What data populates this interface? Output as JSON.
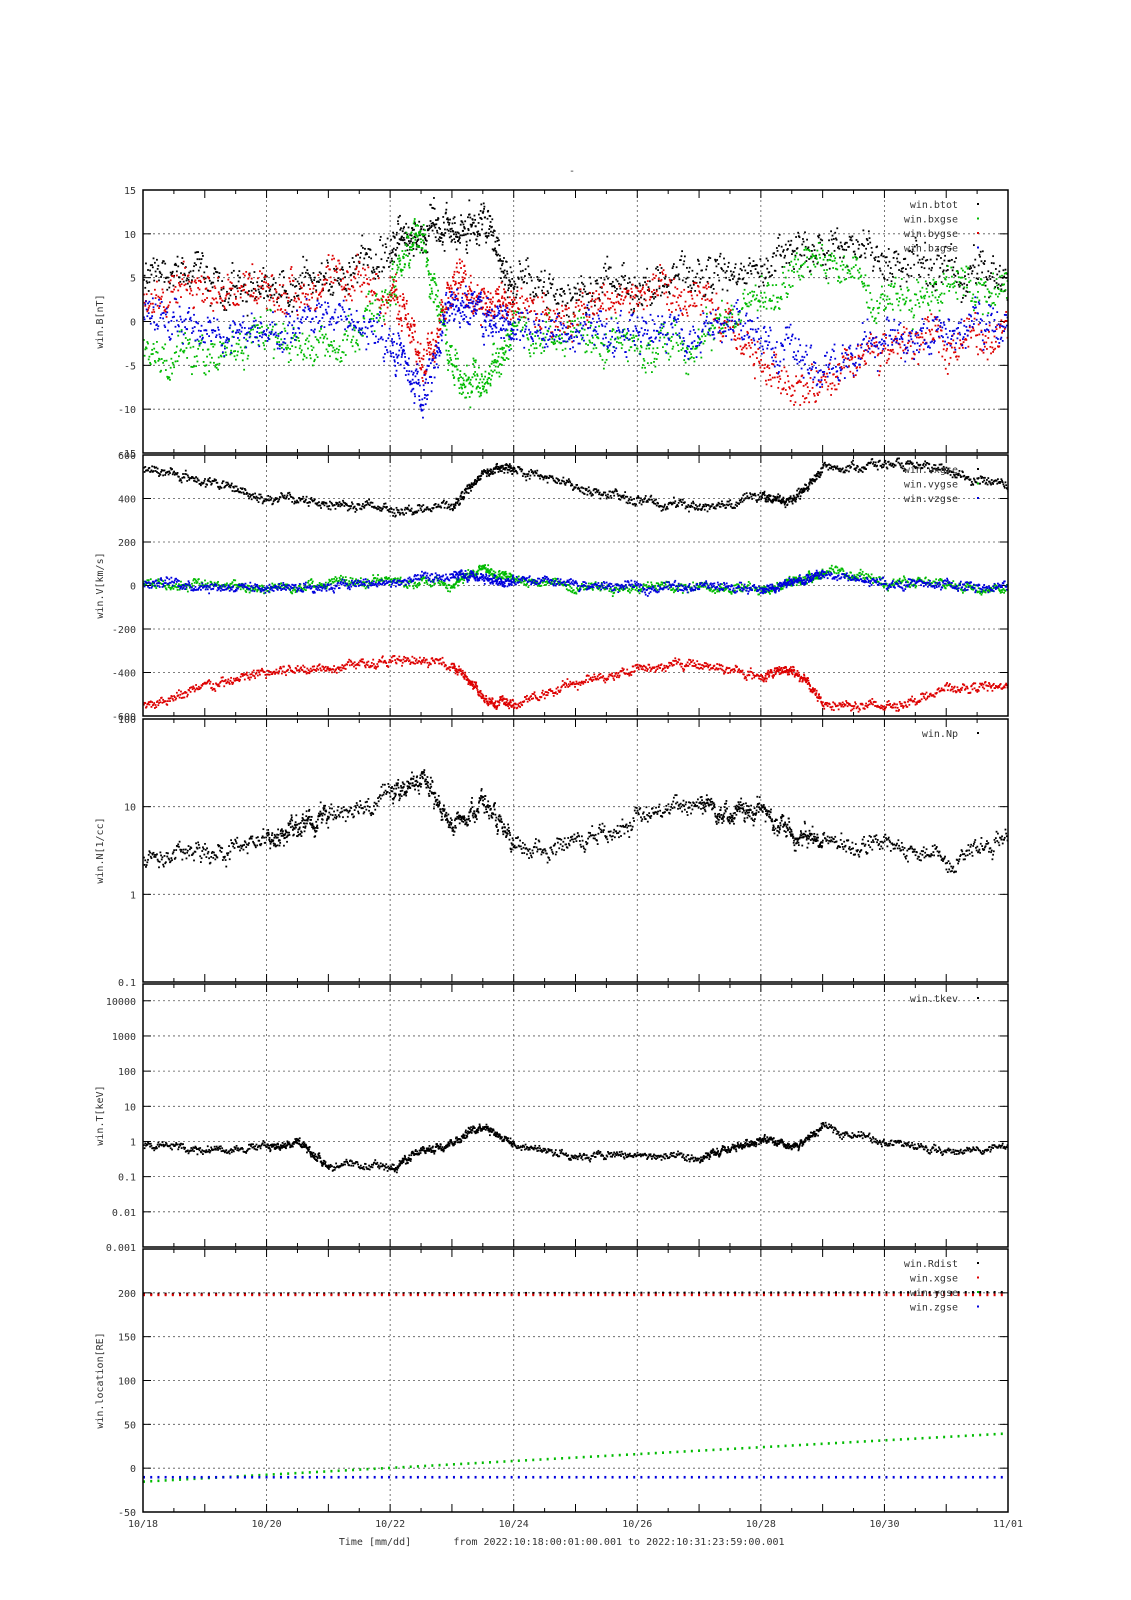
{
  "title": "-",
  "footer": {
    "xlabel": "Time [mm/dd]",
    "range_text": "from 2022:10:18:00:01:00.001  to  2022:10:31:23:59:00.001"
  },
  "x_axis": {
    "unit": "day",
    "start": "10/18",
    "end": "11/01",
    "tick_labels": [
      "10/18",
      "10/20",
      "10/22",
      "10/24",
      "10/26",
      "10/28",
      "10/30",
      "11/01"
    ],
    "grid": true
  },
  "chart_data": [
    {
      "type": "scatter",
      "ylabel": "win.B[nT]",
      "ylim": [
        -15,
        15
      ],
      "yscale": "linear",
      "yticks": [
        "15",
        "10",
        "5",
        "0",
        "-5",
        "-10",
        "-15"
      ],
      "grid": true,
      "legend_placement": "top-right",
      "series": [
        {
          "name": "win.btot",
          "color": "#000000",
          "x": [
            "10/18",
            "10/19",
            "10/20",
            "10/21",
            "10/22",
            "10/22 12h",
            "10/23",
            "10/23 12h",
            "10/24",
            "10/25",
            "10/26",
            "10/27",
            "10/28",
            "10/29",
            "10/30",
            "10/31",
            "11/01"
          ],
          "y": [
            4.5,
            5,
            4,
            5,
            9,
            10,
            10.5,
            11.5,
            4,
            3.5,
            4.5,
            5,
            6,
            9,
            7,
            6,
            5
          ]
        },
        {
          "name": "win.bxgse",
          "color": "#00bb00",
          "x": [
            "10/18",
            "10/19",
            "10/20",
            "10/21",
            "10/22",
            "10/22 12h",
            "10/23",
            "10/23 12h",
            "10/24",
            "10/25",
            "10/26",
            "10/27",
            "10/28",
            "10/29",
            "10/30",
            "10/31",
            "11/01"
          ],
          "y": [
            -3,
            -4,
            -2,
            -3,
            3,
            10,
            -5,
            -8,
            0,
            -2,
            -3,
            -2,
            3,
            7,
            3,
            4,
            4
          ]
        },
        {
          "name": "win.bygse",
          "color": "#dd0000",
          "x": [
            "10/18",
            "10/19",
            "10/20",
            "10/21",
            "10/22",
            "10/22 12h",
            "10/23",
            "10/23 12h",
            "10/24",
            "10/25",
            "10/26",
            "10/27",
            "10/28",
            "10/29",
            "10/30",
            "10/31",
            "11/01"
          ],
          "y": [
            3,
            4,
            3,
            4,
            4,
            -5,
            5,
            3,
            2,
            1,
            3,
            2,
            -5,
            -8,
            -3,
            -2,
            -1
          ]
        },
        {
          "name": "win.bzgse",
          "color": "#0000dd",
          "x": [
            "10/18",
            "10/19",
            "10/20",
            "10/21",
            "10/22",
            "10/22 12h",
            "10/23",
            "10/23 12h",
            "10/24",
            "10/25",
            "10/26",
            "10/27",
            "10/28",
            "10/29",
            "10/30",
            "10/31",
            "11/01"
          ],
          "y": [
            1,
            -1,
            -2,
            1,
            -2,
            -9,
            3,
            0,
            -1,
            0,
            -2,
            -1,
            -1,
            -6,
            -2,
            -1,
            0
          ]
        }
      ]
    },
    {
      "type": "scatter",
      "ylabel": "win.V[km/s]",
      "ylim": [
        -600,
        600
      ],
      "yscale": "linear",
      "yticks": [
        "600",
        "400",
        "200",
        "0",
        "-200",
        "-400",
        "-600"
      ],
      "grid": true,
      "legend_placement": "top-right",
      "series": [
        {
          "name": "win.vxgse",
          "color": "#000000",
          "x": [
            "10/18",
            "10/19",
            "10/20",
            "10/21",
            "10/22",
            "10/23",
            "10/23 12h",
            "10/24",
            "10/25",
            "10/26",
            "10/27",
            "10/28",
            "10/28 12h",
            "10/29",
            "10/30",
            "10/31",
            "11/01"
          ],
          "y": [
            540,
            480,
            400,
            380,
            350,
            360,
            520,
            540,
            450,
            390,
            360,
            410,
            380,
            540,
            560,
            520,
            460
          ]
        },
        {
          "name": "win.vygse",
          "color": "#00bb00",
          "x": [
            "10/18",
            "10/19",
            "10/20",
            "10/21",
            "10/22",
            "10/23",
            "10/23 12h",
            "10/24",
            "10/25",
            "10/26",
            "10/27",
            "10/28",
            "10/28 12h",
            "10/29",
            "10/30",
            "10/31",
            "11/01"
          ],
          "y": [
            10,
            0,
            -10,
            10,
            20,
            10,
            80,
            20,
            0,
            -10,
            0,
            -20,
            10,
            60,
            20,
            0,
            -10
          ]
        },
        {
          "name": "win.vzgse",
          "color": "#0000dd",
          "x": [
            "10/18",
            "10/19",
            "10/20",
            "10/21",
            "10/22",
            "10/23",
            "10/23 12h",
            "10/24",
            "10/25",
            "10/26",
            "10/27",
            "10/28",
            "10/28 12h",
            "10/29",
            "10/30",
            "10/31",
            "11/01"
          ],
          "y": [
            20,
            0,
            -10,
            0,
            10,
            40,
            30,
            20,
            0,
            -10,
            0,
            -20,
            10,
            50,
            10,
            0,
            -10
          ]
        },
        {
          "name": "",
          "color": "#dd0000",
          "x": [
            "10/18",
            "10/19",
            "10/20",
            "10/21",
            "10/22",
            "10/23",
            "10/23 12h",
            "10/24",
            "10/25",
            "10/26",
            "10/27",
            "10/28",
            "10/28 12h",
            "10/29",
            "10/30",
            "10/31",
            "11/01"
          ],
          "y": [
            -550,
            -470,
            -400,
            -370,
            -350,
            -360,
            -520,
            -550,
            -450,
            -380,
            -360,
            -420,
            -380,
            -540,
            -560,
            -480,
            -460
          ]
        }
      ]
    },
    {
      "type": "scatter",
      "ylabel": "win.N[1/cc]",
      "ylim": [
        0.1,
        100
      ],
      "yscale": "log",
      "yticks": [
        "100",
        "10",
        "1",
        "0.1"
      ],
      "grid": true,
      "legend_placement": "top-right",
      "series": [
        {
          "name": "win.Np",
          "color": "#000000",
          "x": [
            "10/18",
            "10/19",
            "10/20",
            "10/20 12h",
            "10/21",
            "10/22",
            "10/22 12h",
            "10/23",
            "10/23 12h",
            "10/24",
            "10/25",
            "10/26",
            "10/27",
            "10/27 12h",
            "10/28",
            "10/28 12h",
            "10/29",
            "10/30",
            "10/31",
            "11/01"
          ],
          "y": [
            2.5,
            3,
            4,
            6,
            8,
            14,
            20,
            6,
            12,
            3,
            4,
            7,
            12,
            8,
            9,
            5,
            4,
            3.5,
            2.5,
            5
          ]
        }
      ]
    },
    {
      "type": "scatter",
      "ylabel": "win.T[keV]",
      "ylim": [
        0.001,
        30000
      ],
      "yscale": "log",
      "yticks": [
        "10000",
        "1000",
        "100",
        "10",
        "1",
        "0.1",
        "0.01",
        "0.001"
      ],
      "grid": true,
      "legend_placement": "top-right",
      "series": [
        {
          "name": "win.tkev",
          "color": "#000000",
          "x": [
            "10/18",
            "10/19",
            "10/20",
            "10/20 12h",
            "10/21",
            "10/22",
            "10/22 12h",
            "10/23",
            "10/23 12h",
            "10/24",
            "10/25",
            "10/26",
            "10/27",
            "10/27 12h",
            "10/28",
            "10/28 12h",
            "10/29",
            "10/30",
            "10/31",
            "11/01"
          ],
          "y": [
            0.8,
            0.6,
            0.7,
            0.9,
            0.2,
            0.18,
            0.5,
            1.0,
            3,
            0.8,
            0.4,
            0.4,
            0.3,
            0.6,
            1.2,
            0.6,
            2.5,
            1.0,
            0.5,
            0.7
          ]
        }
      ]
    },
    {
      "type": "scatter",
      "ylabel": "win.location[RE]",
      "ylim": [
        -50,
        250
      ],
      "yscale": "linear",
      "yticks": [
        "200",
        "150",
        "100",
        "50",
        "0",
        "-50"
      ],
      "grid": true,
      "legend_placement": "top-right",
      "series": [
        {
          "name": "win.Rdist",
          "color": "#000000",
          "x": [
            "10/18",
            "11/01"
          ],
          "y": [
            199,
            201
          ]
        },
        {
          "name": "win.xgse",
          "color": "#dd0000",
          "x": [
            "10/18",
            "11/01"
          ],
          "y": [
            198,
            198
          ]
        },
        {
          "name": "win.ygse",
          "color": "#00bb00",
          "x": [
            "10/18",
            "11/01"
          ],
          "y": [
            -15,
            40
          ]
        },
        {
          "name": "win.zgse",
          "color": "#0000dd",
          "x": [
            "10/18",
            "11/01"
          ],
          "y": [
            -10,
            -10
          ]
        }
      ]
    }
  ]
}
